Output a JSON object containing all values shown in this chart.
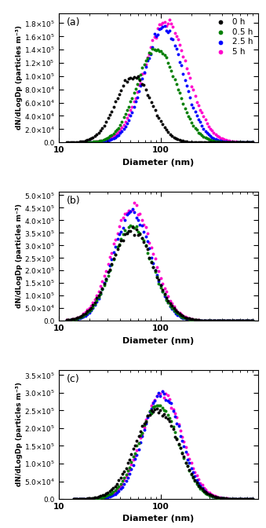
{
  "panels": [
    "(a)",
    "(b)",
    "(c)"
  ],
  "colors": [
    "#000000",
    "#008000",
    "#0000ff",
    "#ff00cc"
  ],
  "labels": [
    "0 h",
    "0.5 h",
    "2.5 h",
    "5 h"
  ],
  "markersize": 2.8,
  "xlabel": "Diameter (nm)",
  "ylabel": "dN/dLogDp (particles m⁻³)",
  "xlim": [
    10,
    900
  ],
  "panel_a": {
    "ylim": [
      0,
      195000.0
    ],
    "yticks": [
      0,
      20000.0,
      40000.0,
      60000.0,
      80000.0,
      100000.0,
      120000.0,
      140000.0,
      160000.0,
      180000.0
    ],
    "series_params": [
      {
        "mu_log": 1.735,
        "sigma_log": 0.175,
        "scale": 101000.0,
        "x_start": 12,
        "x_end": 800
      },
      {
        "mu_log": 1.96,
        "sigma_log": 0.195,
        "scale": 142000.0,
        "x_start": 18,
        "x_end": 800
      },
      {
        "mu_log": 2.03,
        "sigma_log": 0.19,
        "scale": 173000.0,
        "x_start": 18,
        "x_end": 800
      },
      {
        "mu_log": 2.05,
        "sigma_log": 0.21,
        "scale": 182000.0,
        "x_start": 18,
        "x_end": 800
      }
    ]
  },
  "panel_b": {
    "ylim": [
      0,
      515000.0
    ],
    "yticks": [
      0,
      50000.0,
      100000.0,
      150000.0,
      200000.0,
      250000.0,
      300000.0,
      350000.0,
      400000.0,
      450000.0,
      500000.0
    ],
    "series_params": [
      {
        "mu_log": 1.72,
        "sigma_log": 0.205,
        "scale": 360000.0,
        "x_start": 12,
        "x_end": 800
      },
      {
        "mu_log": 1.72,
        "sigma_log": 0.195,
        "scale": 375000.0,
        "x_start": 12,
        "x_end": 800
      },
      {
        "mu_log": 1.72,
        "sigma_log": 0.185,
        "scale": 430000.0,
        "x_start": 12,
        "x_end": 800
      },
      {
        "mu_log": 1.72,
        "sigma_log": 0.2,
        "scale": 455000.0,
        "x_start": 12,
        "x_end": 800
      }
    ]
  },
  "panel_c": {
    "ylim": [
      0,
      365000.0
    ],
    "yticks": [
      0,
      50000.0,
      100000.0,
      150000.0,
      200000.0,
      250000.0,
      300000.0,
      350000.0
    ],
    "series_params": [
      {
        "mu_log": 1.965,
        "sigma_log": 0.21,
        "scale": 255000.0,
        "x_start": 14,
        "x_end": 800
      },
      {
        "mu_log": 1.98,
        "sigma_log": 0.195,
        "scale": 265000.0,
        "x_start": 14,
        "x_end": 800
      },
      {
        "mu_log": 2.01,
        "sigma_log": 0.185,
        "scale": 300000.0,
        "x_start": 14,
        "x_end": 800
      },
      {
        "mu_log": 2.01,
        "sigma_log": 0.195,
        "scale": 302000.0,
        "x_start": 14,
        "x_end": 800
      }
    ]
  }
}
